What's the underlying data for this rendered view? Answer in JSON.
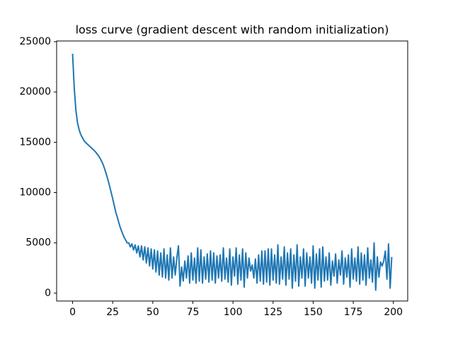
{
  "chart_data": {
    "type": "line",
    "title": "loss curve (gradient descent with random initialization)",
    "x": [
      0,
      1,
      2,
      3,
      4,
      5,
      6,
      7,
      8,
      9,
      10,
      11,
      12,
      13,
      14,
      15,
      16,
      17,
      18,
      19,
      20,
      21,
      22,
      23,
      24,
      25,
      26,
      27,
      28,
      29,
      30,
      31,
      32,
      33,
      34,
      35,
      36,
      37,
      38,
      39,
      40,
      41,
      42,
      43,
      44,
      45,
      46,
      47,
      48,
      49,
      50,
      51,
      52,
      53,
      54,
      55,
      56,
      57,
      58,
      59,
      60,
      61,
      62,
      63,
      64,
      65,
      66,
      67,
      68,
      69,
      70,
      71,
      72,
      73,
      74,
      75,
      76,
      77,
      78,
      79,
      80,
      81,
      82,
      83,
      84,
      85,
      86,
      87,
      88,
      89,
      90,
      91,
      92,
      93,
      94,
      95,
      96,
      97,
      98,
      99,
      100,
      101,
      102,
      103,
      104,
      105,
      106,
      107,
      108,
      109,
      110,
      111,
      112,
      113,
      114,
      115,
      116,
      117,
      118,
      119,
      120,
      121,
      122,
      123,
      124,
      125,
      126,
      127,
      128,
      129,
      130,
      131,
      132,
      133,
      134,
      135,
      136,
      137,
      138,
      139,
      140,
      141,
      142,
      143,
      144,
      145,
      146,
      147,
      148,
      149,
      150,
      151,
      152,
      153,
      154,
      155,
      156,
      157,
      158,
      159,
      160,
      161,
      162,
      163,
      164,
      165,
      166,
      167,
      168,
      169,
      170,
      171,
      172,
      173,
      174,
      175,
      176,
      177,
      178,
      179,
      180,
      181,
      182,
      183,
      184,
      185,
      186,
      187,
      188,
      189,
      190,
      191,
      192,
      193,
      194,
      195,
      196,
      197,
      198,
      199
    ],
    "series": [
      {
        "color": "#1f77b4",
        "values": [
          23800,
          20500,
          18300,
          17000,
          16300,
          15800,
          15500,
          15200,
          15000,
          14850,
          14700,
          14550,
          14400,
          14250,
          14100,
          13900,
          13700,
          13450,
          13150,
          12800,
          12350,
          11850,
          11300,
          10700,
          10050,
          9400,
          8700,
          8000,
          7500,
          6900,
          6400,
          6000,
          5600,
          5300,
          5000,
          5000,
          4600,
          4900,
          4300,
          4800,
          4000,
          4700,
          3600,
          4700,
          3300,
          4600,
          3000,
          4500,
          2700,
          4400,
          2400,
          4300,
          2100,
          4200,
          1800,
          4000,
          1600,
          4400,
          1500,
          3800,
          1300,
          4500,
          1500,
          3600,
          1800,
          3500,
          4700,
          700,
          2600,
          1200,
          3200,
          1500,
          3700,
          1000,
          4000,
          1300,
          3500,
          1000,
          4500,
          1200,
          4300,
          1000,
          3600,
          1400,
          3900,
          1100,
          4200,
          1300,
          4000,
          1000,
          3700,
          1500,
          3800,
          1200,
          4500,
          1400,
          3500,
          1100,
          4400,
          800,
          3600,
          1700,
          4500,
          900,
          3800,
          1300,
          4400,
          600,
          4000,
          1500,
          3500,
          2200,
          2800,
          1500,
          3400,
          1000,
          3800,
          1200,
          4200,
          900,
          4200,
          1100,
          4400,
          800,
          4400,
          1300,
          3800,
          1000,
          4800,
          900,
          3600,
          1400,
          4600,
          800,
          4000,
          1400,
          4400,
          500,
          3800,
          1200,
          4800,
          700,
          3600,
          1500,
          4400,
          700,
          4000,
          1500,
          3600,
          1000,
          4700,
          500,
          3900,
          1300,
          4400,
          600,
          4600,
          1200,
          3600,
          1300,
          4000,
          800,
          3200,
          1700,
          3900,
          1000,
          3300,
          1800,
          4200,
          900,
          3500,
          1600,
          3800,
          600,
          4400,
          1400,
          3500,
          1200,
          4600,
          900,
          4000,
          1300,
          3800,
          800,
          4500,
          1500,
          3300,
          1100,
          5000,
          300,
          3600,
          1600,
          3100,
          2700,
          3200,
          4200,
          1400,
          4900,
          500,
          3600
        ]
      }
    ],
    "xlim": [
      -9.95,
      208.95
    ],
    "ylim": [
      -780,
      25070
    ],
    "xticks": [
      0,
      25,
      50,
      75,
      100,
      125,
      150,
      175,
      200
    ],
    "yticks": [
      0,
      5000,
      10000,
      15000,
      20000,
      25000
    ]
  }
}
